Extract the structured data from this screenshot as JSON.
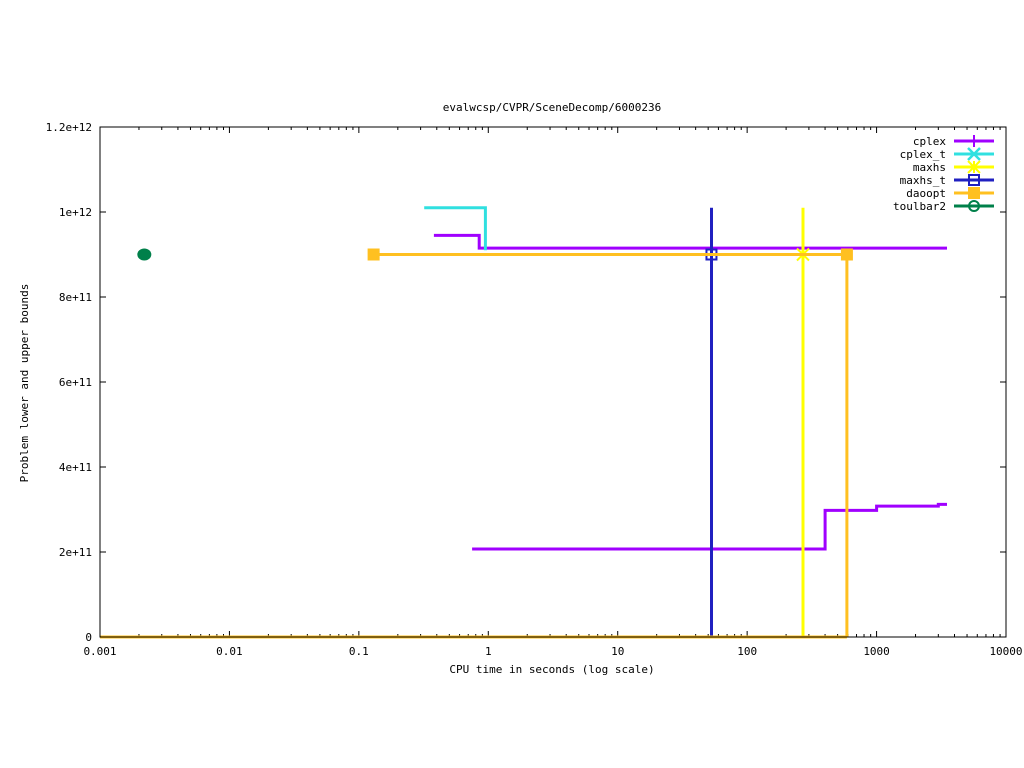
{
  "chart_data": {
    "type": "line",
    "title": "evalwcsp/CVPR/SceneDecomp/6000236",
    "xlabel": "CPU time in seconds (log scale)",
    "ylabel": "Problem lower and upper bounds",
    "x_scale": "log",
    "xlim": [
      0.001,
      10000
    ],
    "ylim": [
      0,
      1200000000000.0
    ],
    "x_ticks": [
      0.001,
      0.01,
      0.1,
      1,
      10,
      100,
      1000,
      10000
    ],
    "x_tick_labels": [
      "0.001",
      "0.01",
      "0.1",
      "1",
      "10",
      "100",
      "1000",
      "10000"
    ],
    "y_ticks": [
      0,
      200000000000.0,
      400000000000.0,
      600000000000.0,
      800000000000.0,
      1000000000000.0,
      1200000000000.0
    ],
    "y_tick_labels": [
      "0",
      "2e+11",
      "4e+11",
      "6e+11",
      "8e+11",
      "1e+12",
      "1.2e+12"
    ],
    "grid": false,
    "legend_position": "top-right",
    "series": [
      {
        "name": "cplex",
        "color": "#a000ff",
        "marker": "plus",
        "step": true,
        "lines": [
          [
            [
              0.38,
              945000000000.0
            ],
            [
              0.85,
              945000000000.0
            ],
            [
              0.85,
              915000000000.0
            ],
            [
              3500,
              915000000000.0
            ]
          ],
          [
            [
              0.75,
              207000000000.0
            ],
            [
              400,
              207000000000.0
            ],
            [
              400,
              298000000000.0
            ],
            [
              1000,
              298000000000.0
            ],
            [
              1000,
              308000000000.0
            ],
            [
              3000,
              308000000000.0
            ],
            [
              3000,
              312000000000.0
            ],
            [
              3500,
              312000000000.0
            ]
          ]
        ],
        "points": [
          [
            270,
            900000000000.0
          ]
        ]
      },
      {
        "name": "cplex_t",
        "color": "#30e0e0",
        "marker": "cross",
        "step": true,
        "lines": [
          [
            [
              0.32,
              1010000000000.0
            ],
            [
              0.95,
              1010000000000.0
            ],
            [
              0.95,
              910000000000.0
            ]
          ]
        ],
        "points": []
      },
      {
        "name": "maxhs",
        "color": "#ffff00",
        "marker": "star",
        "step": true,
        "lines": [
          [
            [
              270,
              1010000000000.0
            ],
            [
              270,
              0
            ]
          ]
        ],
        "points": [
          [
            270,
            900000000000.0
          ]
        ]
      },
      {
        "name": "maxhs_t",
        "color": "#2020c0",
        "marker": "open-square",
        "step": true,
        "lines": [
          [
            [
              53,
              1010000000000.0
            ],
            [
              53,
              0
            ]
          ]
        ],
        "points": [
          [
            53,
            900000000000.0
          ]
        ]
      },
      {
        "name": "daoopt",
        "color": "#ffc020",
        "marker": "filled-square",
        "step": true,
        "lines": [
          [
            [
              0.13,
              900000000000.0
            ],
            [
              590,
              900000000000.0
            ],
            [
              590,
              0
            ]
          ],
          [
            [
              0.001,
              0
            ],
            [
              590,
              0
            ]
          ]
        ],
        "points": [
          [
            0.13,
            900000000000.0
          ],
          [
            590,
            900000000000.0
          ]
        ]
      },
      {
        "name": "toulbar2",
        "color": "#00804a",
        "marker": "filled-circle",
        "step": true,
        "lines": [],
        "points": [
          [
            0.0022,
            900000000000.0
          ]
        ]
      }
    ]
  }
}
